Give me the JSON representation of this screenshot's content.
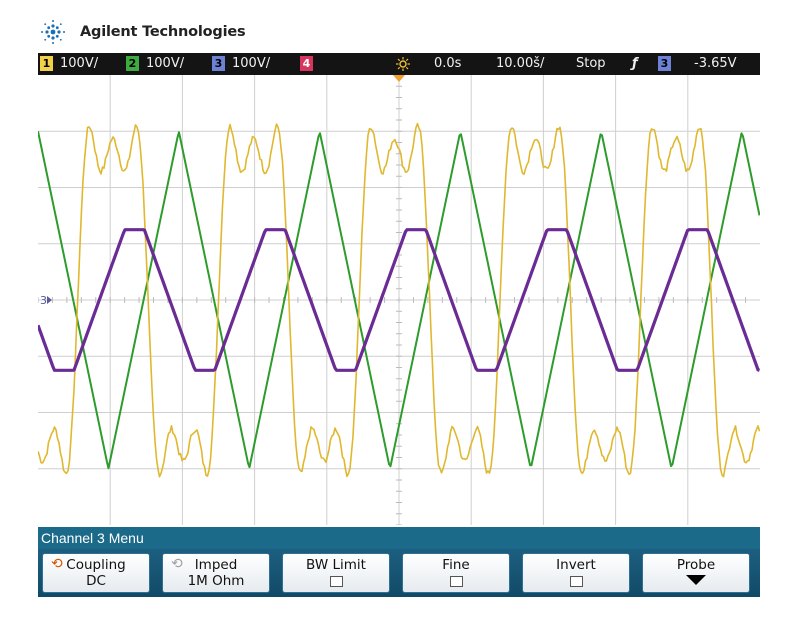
{
  "brand": {
    "name": "Agilent Technologies",
    "logo_icon": "agilent-spark-icon"
  },
  "status_bar": {
    "channels": [
      {
        "num": "1",
        "scale": "100V/",
        "color": "#f2d14a"
      },
      {
        "num": "2",
        "scale": "100V/",
        "color": "#3faa3f"
      },
      {
        "num": "3",
        "scale": "100V/",
        "color": "#6d82d6"
      },
      {
        "num": "4",
        "scale": "",
        "color": "#d8355e"
      }
    ],
    "run_icon": "sun-icon",
    "delay": "0.0s",
    "timebase": "10.00š/",
    "run_state": "Stop",
    "trigger_icon": "trigger-edge-icon",
    "trigger_channel": "3",
    "trigger_level": "-3.65V"
  },
  "scope": {
    "channel_marker": "3"
  },
  "chart_data": {
    "type": "line",
    "title": "",
    "xlabel": "",
    "ylabel": "",
    "x_divisions": 10,
    "y_divisions": 8,
    "xlim": [
      0,
      10
    ],
    "ylim": [
      -4,
      4
    ],
    "grid": true,
    "series": [
      {
        "color": "#2d9c2d",
        "waveform": "triangle",
        "period_div": 1.95,
        "amplitude_div": 3,
        "phase_div": 0.0
      },
      {
        "color": "#e0b830",
        "waveform": "noisy-square-with-steps",
        "period_div": 1.95,
        "amplitude_div": 3.15,
        "phase_div": 0.55
      },
      {
        "color": "#6a2c94",
        "waveform": "trapezoid",
        "period_div": 1.95,
        "amplitude_div": 1.25,
        "phase_div": 1.2
      }
    ]
  },
  "menu": {
    "title": "Channel 3  Menu",
    "softkeys": [
      {
        "label": "Coupling",
        "value": "DC",
        "knob": "on",
        "icon": "rotate-knob-icon"
      },
      {
        "label": "Imped",
        "value": "1M Ohm",
        "knob": "off",
        "icon": "rotate-knob-icon"
      },
      {
        "label": "BW Limit",
        "value": "",
        "checkbox": true
      },
      {
        "label": "Fine",
        "value": "",
        "checkbox": true
      },
      {
        "label": "Invert",
        "value": "",
        "checkbox": true
      },
      {
        "label": "Probe",
        "value": "",
        "arrow": true,
        "icon": "arrow-down-icon"
      }
    ]
  }
}
